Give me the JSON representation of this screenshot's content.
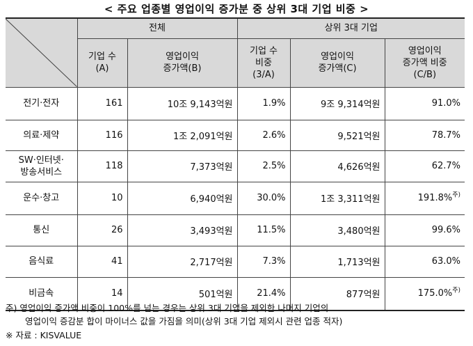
{
  "title": "< 주요 업종별 영업이익 증가분 중 상위 3대 기업 비중 >",
  "header": {
    "group_all": "전체",
    "group_top3": "상위 3대 기업",
    "col_count": [
      "기업 수",
      "(A)"
    ],
    "col_increase_all": [
      "영업이익",
      "증가액(B)"
    ],
    "col_share_count": [
      "기업 수",
      "비중",
      "(3/A)"
    ],
    "col_increase_top3": [
      "영업이익",
      "증가액(C)"
    ],
    "col_share_increase": [
      "영업이익",
      "증가액 비중",
      "(C/B)"
    ]
  },
  "rows": [
    {
      "industry": [
        "전기·전자"
      ],
      "count": "161",
      "increase_all": "10조 9,143억원",
      "share_count": "1.9%",
      "increase_top3": "9조 9,314억원",
      "share_increase": "91.0%",
      "mark": ""
    },
    {
      "industry": [
        "의료·제약"
      ],
      "count": "116",
      "increase_all": "1조 2,091억원",
      "share_count": "2.6%",
      "increase_top3": "9,521억원",
      "share_increase": "78.7%",
      "mark": ""
    },
    {
      "industry": [
        "SW·인터넷·",
        "방송서비스"
      ],
      "count": "118",
      "increase_all": "7,373억원",
      "share_count": "2.5%",
      "increase_top3": "4,626억원",
      "share_increase": "62.7%",
      "mark": ""
    },
    {
      "industry": [
        "운수·창고"
      ],
      "count": "10",
      "increase_all": "6,940억원",
      "share_count": "30.0%",
      "increase_top3": "1조 3,311억원",
      "share_increase": "191.8%",
      "mark": "주)"
    },
    {
      "industry": [
        "통신"
      ],
      "count": "26",
      "increase_all": "3,493억원",
      "share_count": "11.5%",
      "increase_top3": "3,480억원",
      "share_increase": "99.6%",
      "mark": ""
    },
    {
      "industry": [
        "음식료"
      ],
      "count": "41",
      "increase_all": "2,717억원",
      "share_count": "7.3%",
      "increase_top3": "1,713억원",
      "share_increase": "63.0%",
      "mark": ""
    },
    {
      "industry": [
        "비금속"
      ],
      "count": "14",
      "increase_all": "501억원",
      "share_count": "21.4%",
      "increase_top3": "877억원",
      "share_increase": "175.0%",
      "mark": "주)"
    }
  ],
  "notes": {
    "note_line1": "주) 영업이익 증가액 비중이 100%를 넘는 경우는 상위 3대 기업을 제외한 나머지 기업의",
    "note_line2": "영업이익 증감분 합이 마이너스 값을 가짐을 의미(상위 3대 기업 제외시 관련 업종 적자)",
    "source": "※ 자료 : KISVALUE"
  },
  "colors": {
    "header_bg": "#d9d9d9",
    "border": "#444444"
  }
}
